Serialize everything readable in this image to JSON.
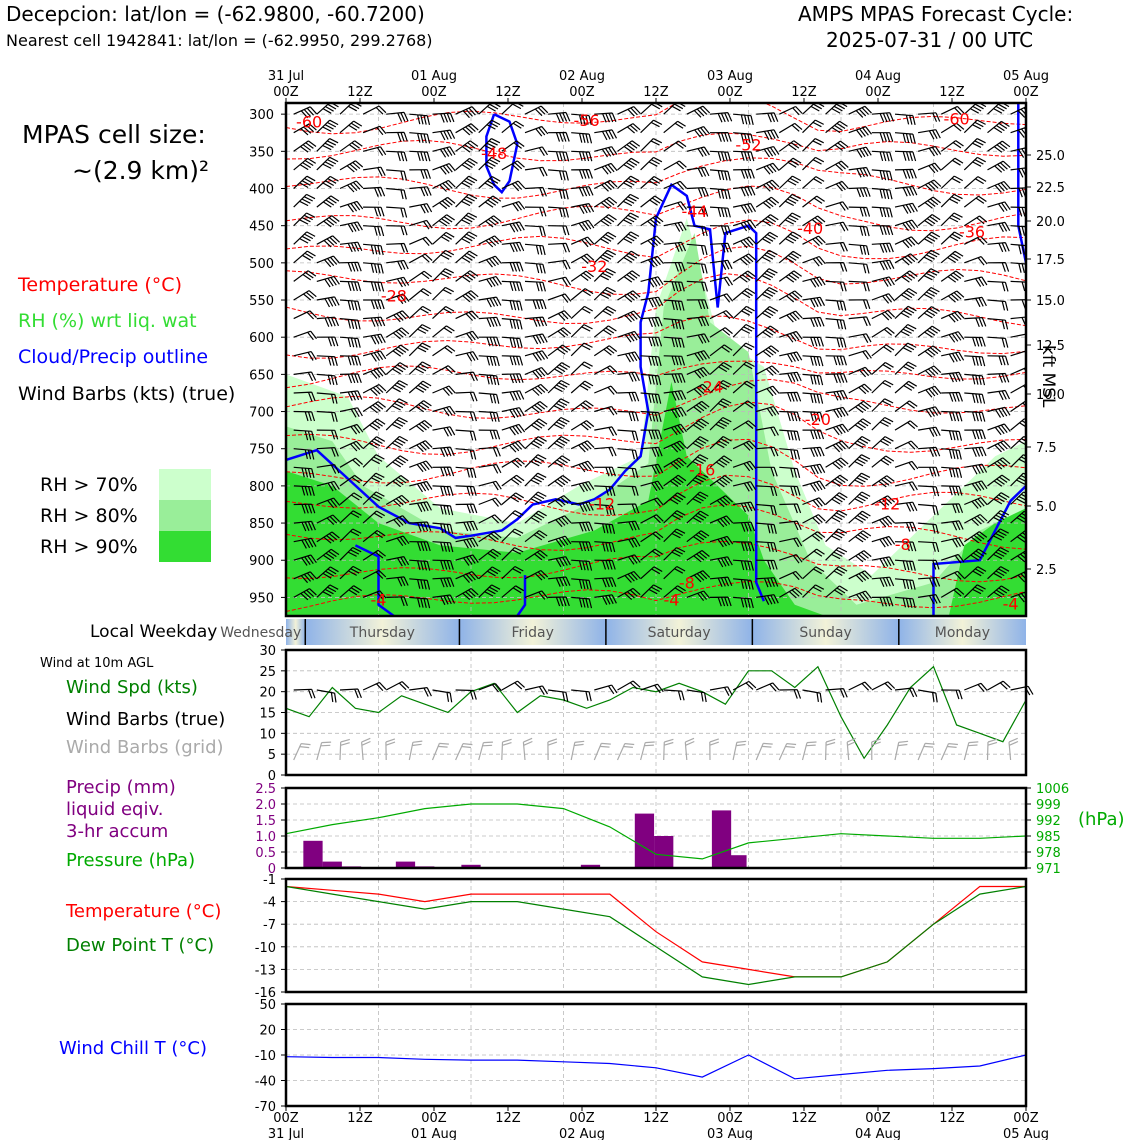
{
  "header": {
    "location_line": "Decepcion: lat/lon = (-62.9800, -60.7200)",
    "cell_line": "Nearest cell 1942841: lat/lon = (-62.9950, 299.2768)",
    "cycle_label": "AMPS MPAS Forecast Cycle:",
    "cycle_value": "2025-07-31 / 00 UTC"
  },
  "sidebar": {
    "cell_size_label": "MPAS cell size:",
    "cell_size_value": "~(2.9 km)²",
    "legend_temperature": "Temperature (°C)",
    "legend_rh": "RH (%) wrt liq. wat",
    "legend_cloud": "Cloud/Precip outline",
    "legend_wind": "Wind Barbs (kts) (true)",
    "rh_70": "RH > 70%",
    "rh_80": "RH > 80%",
    "rh_90": "RH > 90%"
  },
  "colors": {
    "temperature": "#ff0000",
    "rh_text": "#33cc33",
    "cloud": "#0000ff",
    "rh70": "#ccffcc",
    "rh80": "#99ee99",
    "rh90": "#33dd33",
    "wind_speed": "#008000",
    "grid_barbs": "#aaaaaa",
    "precip": "#800080",
    "pressure": "#00aa00",
    "dewpoint": "#008000",
    "windchill": "#0000ff"
  },
  "time_axis": {
    "top_labels": [
      {
        "line1": "31 Jul",
        "line2": "00Z"
      },
      {
        "line1": "",
        "line2": "12Z"
      },
      {
        "line1": "01 Aug",
        "line2": "00Z"
      },
      {
        "line1": "",
        "line2": "12Z"
      },
      {
        "line1": "02 Aug",
        "line2": "00Z"
      },
      {
        "line1": "",
        "line2": "12Z"
      },
      {
        "line1": "03 Aug",
        "line2": "00Z"
      },
      {
        "line1": "",
        "line2": "12Z"
      },
      {
        "line1": "04 Aug",
        "line2": "00Z"
      },
      {
        "line1": "",
        "line2": "12Z"
      },
      {
        "line1": "05 Aug",
        "line2": "00Z"
      }
    ],
    "bottom_labels": [
      {
        "line1": "00Z",
        "line2": "31 Jul"
      },
      {
        "line1": "12Z",
        "line2": ""
      },
      {
        "line1": "00Z",
        "line2": "01 Aug"
      },
      {
        "line1": "12Z",
        "line2": ""
      },
      {
        "line1": "00Z",
        "line2": "02 Aug"
      },
      {
        "line1": "12Z",
        "line2": ""
      },
      {
        "line1": "00Z",
        "line2": "03 Aug"
      },
      {
        "line1": "12Z",
        "line2": ""
      },
      {
        "line1": "00Z",
        "line2": "04 Aug"
      },
      {
        "line1": "12Z",
        "line2": ""
      },
      {
        "line1": "00Z",
        "line2": "05 Aug"
      }
    ]
  },
  "weekday": {
    "label": "Local Weekday",
    "days": [
      "Wednesday",
      "Thursday",
      "Friday",
      "Saturday",
      "Sunday",
      "Monday"
    ]
  },
  "surface_labels": {
    "wind_note": "Wind at 10m AGL",
    "wind_speed": "Wind Spd (kts)",
    "wind_barbs_true": "Wind Barbs (true)",
    "wind_barbs_grid": "Wind Barbs (grid)",
    "precip_line1": "Precip (mm)",
    "precip_line2": "liquid eqiv.",
    "precip_line3": "3-hr accum",
    "pressure": "Pressure (hPa)",
    "pressure_unit": "(hPa)",
    "temperature": "Temperature (°C)",
    "dewpoint": "Dew Point T (°C)",
    "windchill": "Wind Chill T (°C)",
    "kft_label": "kft MSL"
  },
  "chart_data": [
    {
      "type": "heatmap",
      "name": "cross-section",
      "x_range_hours": [
        0,
        96
      ],
      "y_axis": {
        "label": "",
        "ticks_hpa": [
          300,
          350,
          400,
          450,
          500,
          550,
          600,
          650,
          700,
          750,
          800,
          850,
          900,
          950
        ],
        "range_hpa": [
          285,
          975
        ]
      },
      "right_axis": {
        "label": "kft MSL",
        "ticks": [
          "25.0",
          "22.5",
          "20.0",
          "17.5",
          "15.0",
          "12.5",
          "10.0",
          "7.5",
          "5.0",
          "2.5"
        ]
      },
      "temperature_labels": [
        {
          "t": 3,
          "p": 312,
          "text": "-60"
        },
        {
          "t": 39,
          "p": 310,
          "text": "-56"
        },
        {
          "t": 87,
          "p": 308,
          "text": "-60"
        },
        {
          "t": 27,
          "p": 354,
          "text": "-48"
        },
        {
          "t": 60,
          "p": 343,
          "text": "-52"
        },
        {
          "t": 53,
          "p": 432,
          "text": "-44"
        },
        {
          "t": 68,
          "p": 455,
          "text": "-40"
        },
        {
          "t": 89,
          "p": 460,
          "text": "-36"
        },
        {
          "t": 40,
          "p": 506,
          "text": "-32"
        },
        {
          "t": 14,
          "p": 546,
          "text": "-28"
        },
        {
          "t": 55,
          "p": 668,
          "text": "-24"
        },
        {
          "t": 69,
          "p": 712,
          "text": "-20"
        },
        {
          "t": 54,
          "p": 780,
          "text": "-16"
        },
        {
          "t": 41,
          "p": 826,
          "text": "-12"
        },
        {
          "t": 78,
          "p": 826,
          "text": "-12"
        },
        {
          "t": 80,
          "p": 880,
          "text": "-8"
        },
        {
          "t": 52,
          "p": 932,
          "text": "-8"
        },
        {
          "t": 50,
          "p": 955,
          "text": "-4"
        },
        {
          "t": 12,
          "p": 955,
          "text": "-4"
        },
        {
          "t": 94,
          "p": 960,
          "text": "-4"
        }
      ]
    },
    {
      "type": "line",
      "name": "wind-speed",
      "ylim": [
        0,
        30
      ],
      "y_ticks": [
        0,
        5,
        10,
        15,
        20,
        25,
        30
      ],
      "x_hours": [
        0,
        3,
        6,
        9,
        12,
        15,
        18,
        21,
        24,
        27,
        30,
        33,
        36,
        39,
        42,
        45,
        48,
        51,
        54,
        57,
        60,
        63,
        66,
        69,
        72,
        75,
        78,
        81,
        84,
        87,
        90,
        93,
        96
      ],
      "series": [
        {
          "values": [
            16,
            14,
            21,
            16,
            15,
            19,
            17,
            15,
            20,
            22,
            15,
            19,
            18,
            16,
            18,
            21,
            20,
            22,
            20,
            17,
            25,
            25,
            21,
            26,
            14,
            4,
            12,
            21,
            26,
            12,
            10,
            8,
            18
          ]
        }
      ]
    },
    {
      "type": "bar",
      "name": "precip",
      "ylim": [
        0,
        2.5
      ],
      "y_ticks": [
        0,
        0.5,
        1.0,
        1.5,
        2.0,
        2.5
      ],
      "bar_centers_hours": [
        3.5,
        6,
        8.5,
        15.5,
        18,
        24,
        39.5,
        46.5,
        49,
        56.5,
        58.5
      ],
      "values": [
        0.85,
        0.2,
        0.05,
        0.2,
        0.05,
        0.1,
        0.1,
        1.7,
        1.0,
        1.8,
        0.4
      ]
    },
    {
      "type": "line",
      "name": "pressure",
      "ylim": [
        971,
        1006
      ],
      "y_ticks": [
        971,
        978,
        985,
        992,
        999,
        1006
      ],
      "x_hours": [
        0,
        6,
        12,
        18,
        24,
        30,
        36,
        42,
        48,
        54,
        60,
        66,
        72,
        78,
        84,
        90,
        96
      ],
      "series": [
        {
          "values": [
            986,
            990,
            993,
            997,
            999,
            999,
            997,
            989,
            977,
            975,
            982,
            984,
            986,
            985,
            984,
            984,
            985
          ]
        }
      ]
    },
    {
      "type": "line",
      "name": "temperature-dewpoint",
      "ylim": [
        -16,
        -1
      ],
      "y_ticks": [
        -1,
        -4,
        -7,
        -10,
        -13,
        -16
      ],
      "x_hours": [
        0,
        6,
        12,
        18,
        24,
        30,
        36,
        42,
        48,
        54,
        60,
        66,
        72,
        78,
        84,
        90,
        96
      ],
      "series": [
        {
          "name": "Temperature (°C)",
          "values": [
            -2,
            -2.5,
            -3,
            -4,
            -3,
            -3,
            -3,
            -3,
            -8,
            -12,
            -13,
            -14,
            -14,
            -12,
            -7,
            -2,
            -2
          ]
        },
        {
          "name": "Dew Point T (°C)",
          "values": [
            -2,
            -3,
            -4,
            -5,
            -4,
            -4,
            -5,
            -6,
            -10,
            -14,
            -15,
            -14,
            -14,
            -12,
            -7,
            -3,
            -2
          ]
        }
      ]
    },
    {
      "type": "line",
      "name": "wind-chill",
      "ylim": [
        -70,
        50
      ],
      "y_ticks": [
        50,
        20,
        -10,
        -40,
        -70
      ],
      "x_hours": [
        0,
        6,
        12,
        18,
        24,
        30,
        36,
        42,
        48,
        54,
        60,
        66,
        72,
        78,
        84,
        90,
        96
      ],
      "series": [
        {
          "values": [
            -12,
            -13,
            -13,
            -15,
            -16,
            -16,
            -18,
            -20,
            -25,
            -36,
            -10,
            -38,
            -33,
            -28,
            -26,
            -23,
            -10
          ]
        }
      ]
    }
  ]
}
